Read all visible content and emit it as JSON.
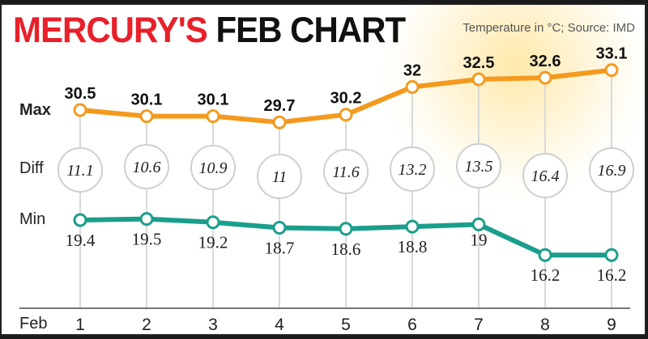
{
  "header": {
    "title_part1": "MERCURY'S",
    "title_part2": "FEB CHART",
    "source": "Temperature in °C; Source: IMD"
  },
  "row_labels": {
    "max": "Max",
    "diff": "Diff",
    "min": "Min",
    "x_axis": "Feb"
  },
  "colors": {
    "title_red": "#e8202a",
    "max_line": "#f39a1e",
    "min_line": "#1a9e8c",
    "grid": "#d9d9d9"
  },
  "chart_data": {
    "type": "line",
    "title": "MERCURY'S FEB CHART",
    "subtitle": "Temperature in °C; Source: IMD",
    "xlabel": "Feb",
    "ylabel": "",
    "x": [
      1,
      2,
      3,
      4,
      5,
      6,
      7,
      8,
      9
    ],
    "series": [
      {
        "name": "Max",
        "color": "#f39a1e",
        "values": [
          30.5,
          30.1,
          30.1,
          29.7,
          30.2,
          32,
          32.5,
          32.6,
          33.1
        ]
      },
      {
        "name": "Min",
        "color": "#1a9e8c",
        "values": [
          19.4,
          19.5,
          19.2,
          18.7,
          18.6,
          18.8,
          19,
          16.2,
          16.2
        ]
      },
      {
        "name": "Diff",
        "values": [
          11.1,
          10.6,
          10.9,
          11,
          11.6,
          13.2,
          13.5,
          16.4,
          16.9
        ]
      }
    ],
    "grid": false,
    "legend": "row labels on left"
  },
  "max_labels": [
    "30.5",
    "30.1",
    "30.1",
    "29.7",
    "30.2",
    "32",
    "32.5",
    "32.6",
    "33.1"
  ],
  "min_labels": [
    "19.4",
    "19.5",
    "19.2",
    "18.7",
    "18.6",
    "18.8",
    "19",
    "16.2",
    "16.2"
  ],
  "diff_labels": [
    "11.1",
    "10.6",
    "10.9",
    "11",
    "11.6",
    "13.2",
    "13.5",
    "16.4",
    "16.9"
  ],
  "x_labels": [
    "1",
    "2",
    "3",
    "4",
    "5",
    "6",
    "7",
    "8",
    "9"
  ]
}
